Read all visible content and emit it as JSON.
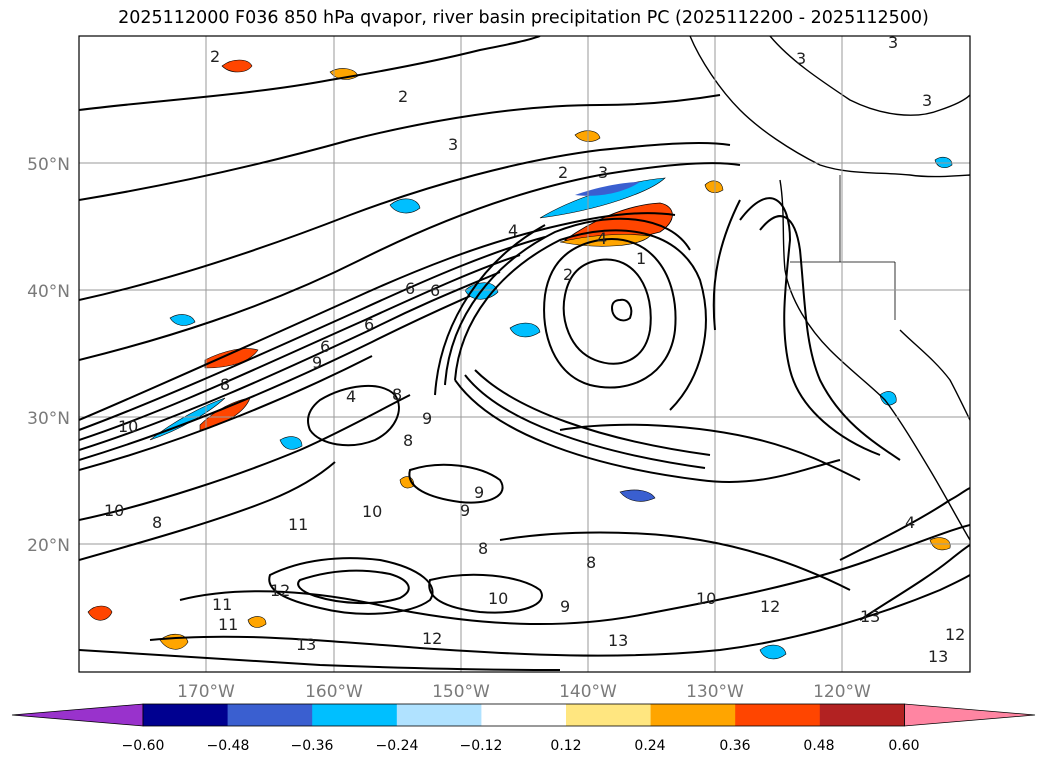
{
  "title": "2025112000 F036 850 hPa qvapor, river basin precipitation PC (2025112200 - 2025112500)",
  "map": {
    "latitude_labels": [
      "50°N",
      "40°N",
      "30°N",
      "20°N"
    ],
    "longitude_labels": [
      "170°W",
      "160°W",
      "150°W",
      "140°W",
      "130°W",
      "120°W"
    ],
    "contour_labels": [
      "1",
      "2",
      "2",
      "2",
      "2",
      "3",
      "3",
      "3",
      "3",
      "3",
      "4",
      "4",
      "4",
      "4",
      "6",
      "6",
      "6",
      "6",
      "8",
      "8",
      "8",
      "8",
      "8",
      "8",
      "9",
      "9",
      "9",
      "9",
      "9",
      "10",
      "10",
      "10",
      "10",
      "10",
      "11",
      "11",
      "11",
      "12",
      "12",
      "12",
      "12",
      "13",
      "13",
      "13",
      "13"
    ]
  },
  "colorbar": {
    "ticks": [
      "−0.60",
      "−0.48",
      "−0.36",
      "−0.24",
      "−0.12",
      "0.12",
      "0.24",
      "0.36",
      "0.48",
      "0.60"
    ],
    "colors": [
      "#9932cc",
      "#000090",
      "#3a5fd0",
      "#00bfff",
      "#b0e2ff",
      "#ffffff",
      "#ffe680",
      "#ffa500",
      "#ff4500",
      "#b22222",
      "#ff85a2"
    ],
    "bounds": [
      -0.6,
      -0.48,
      -0.36,
      -0.24,
      -0.12,
      0.12,
      0.24,
      0.36,
      0.48,
      0.6
    ]
  },
  "colors": {
    "contour": "#000000",
    "grid": "#9a9a9a",
    "orange": "#ffa500",
    "red": "#ff4500",
    "blue": "#00bfff",
    "darkblue": "#3a5fd0"
  }
}
